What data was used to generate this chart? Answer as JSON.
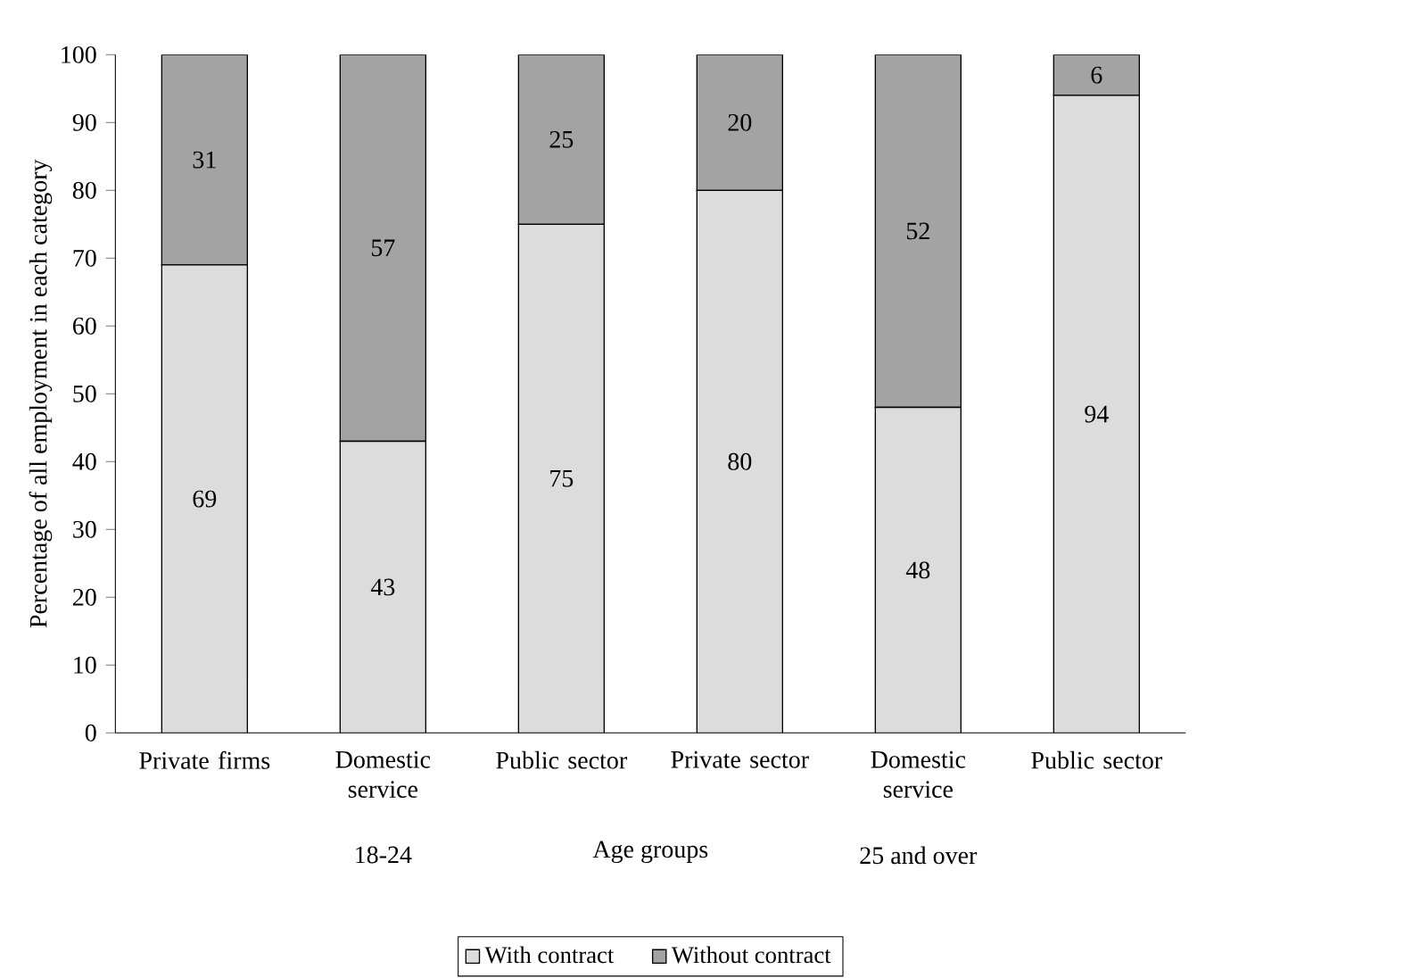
{
  "chart_data": {
    "type": "bar",
    "stacked": true,
    "xlabel": "Age groups",
    "ylabel": "Percentage of all employment in each category",
    "categories": [
      "Private firms",
      "Domestic service",
      "Public sector",
      "Private sector",
      "Domestic service",
      "Public sector"
    ],
    "series": [
      {
        "name": "With contract",
        "color": "#dcdcdc",
        "values": [
          69,
          43,
          75,
          80,
          48,
          94
        ]
      },
      {
        "name": "Without contract",
        "color": "#a3a3a3",
        "values": [
          31,
          57,
          25,
          20,
          52,
          6
        ]
      }
    ],
    "ylim": [
      0,
      100
    ],
    "yticks": [
      0,
      10,
      20,
      30,
      40,
      50,
      60,
      70,
      80,
      90,
      100
    ],
    "annotations": [
      "18-24",
      "25 and over"
    ],
    "data_labels": true,
    "legend": "bottom",
    "grid": false
  }
}
